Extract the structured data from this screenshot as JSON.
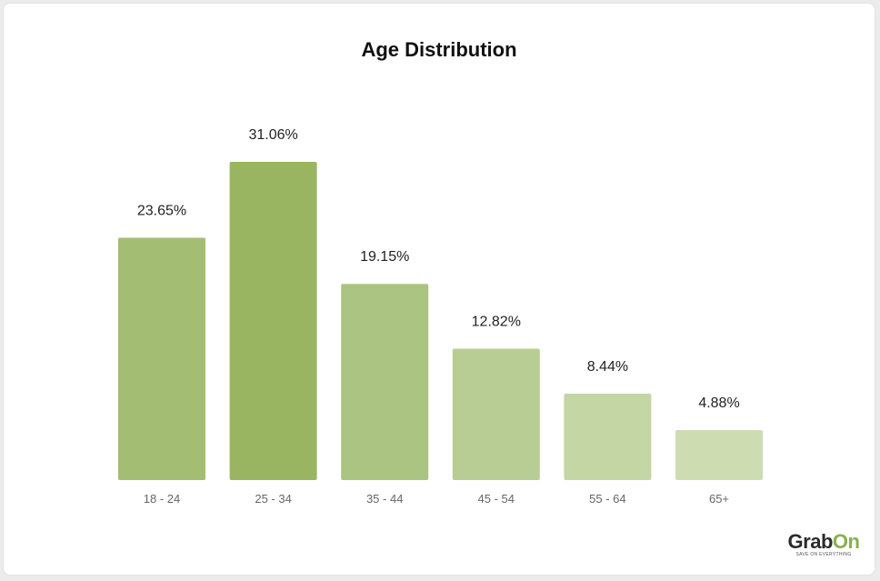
{
  "chart_data": {
    "type": "bar",
    "title": "Age Distribution",
    "xlabel": "",
    "ylabel": "",
    "categories": [
      "18 - 24",
      "25 - 34",
      "35 - 44",
      "45 - 54",
      "55 - 64",
      "65+"
    ],
    "values": [
      23.65,
      31.06,
      19.15,
      12.82,
      8.44,
      4.88
    ],
    "value_labels": [
      "23.65%",
      "31.06%",
      "19.15%",
      "12.82%",
      "8.44%",
      "4.88%"
    ],
    "bar_colors": [
      "#a3bd72",
      "#99b562",
      "#abc482",
      "#b8cd93",
      "#c4d6a3",
      "#cedcb2"
    ],
    "ylim": [
      0,
      31.06
    ],
    "grid": false
  },
  "logo": {
    "word_main": "Grab",
    "word_accent": "On",
    "tagline": "SAVE ON EVERYTHING"
  }
}
